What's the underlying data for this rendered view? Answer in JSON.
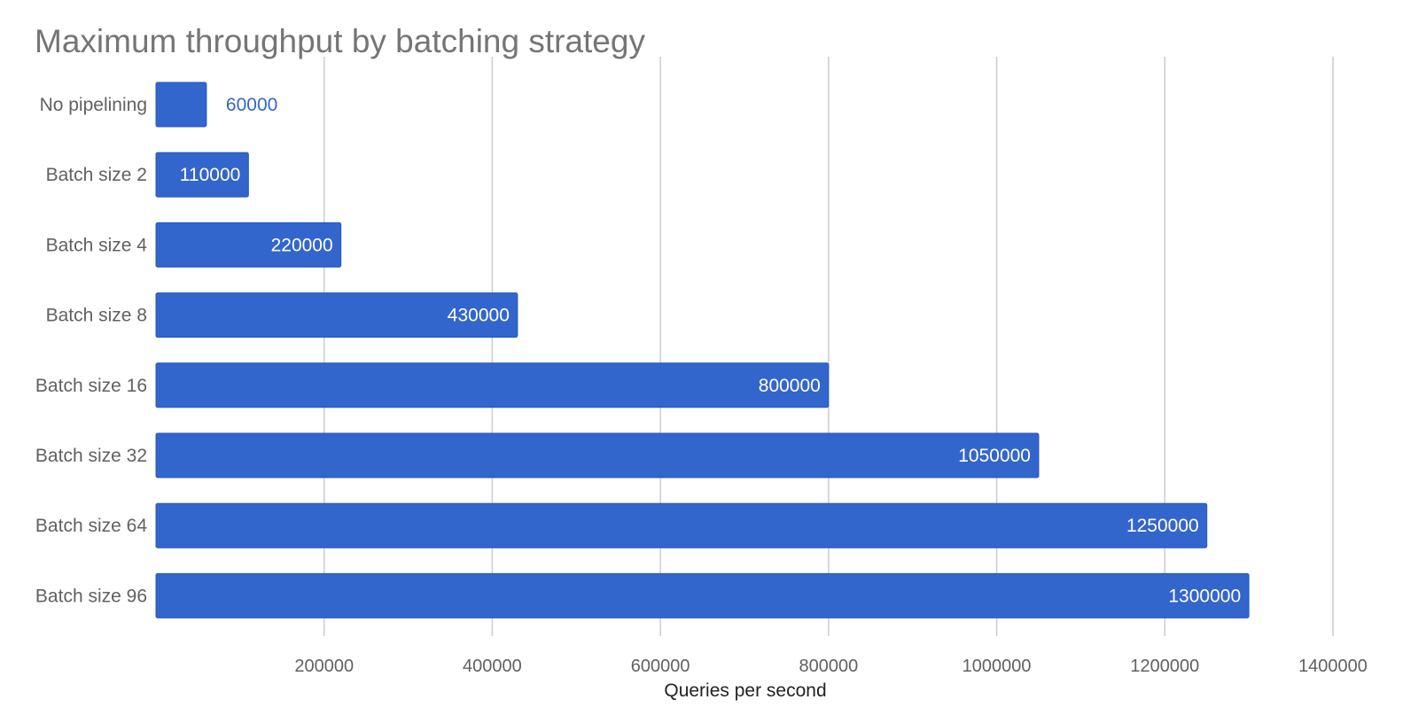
{
  "chart_data": {
    "type": "bar",
    "orientation": "horizontal",
    "title": "Maximum throughput by batching strategy",
    "xlabel": "Queries per second",
    "ylabel": "",
    "categories": [
      "No pipelining",
      "Batch size 2",
      "Batch size 4",
      "Batch size 8",
      "Batch size 16",
      "Batch size 32",
      "Batch size 64",
      "Batch size 96"
    ],
    "values": [
      60000,
      110000,
      220000,
      430000,
      800000,
      1050000,
      1250000,
      1300000
    ],
    "data_labels": [
      "60000",
      "110000",
      "220000",
      "430000",
      "800000",
      "1050000",
      "1250000",
      "1300000"
    ],
    "xlim": [
      0,
      1400000
    ],
    "xticks": [
      200000,
      400000,
      600000,
      800000,
      1000000,
      1200000,
      1400000
    ],
    "xtick_labels": [
      "200000",
      "400000",
      "600000",
      "800000",
      "1000000",
      "1200000",
      "1400000"
    ],
    "grid": true,
    "legend": "none",
    "colors": {
      "bar": "#3366cc",
      "bar_label_inside": "#ffffff",
      "bar_label_outside": "#3366cc",
      "title": "#757575",
      "gridline": "#cccccc"
    }
  }
}
